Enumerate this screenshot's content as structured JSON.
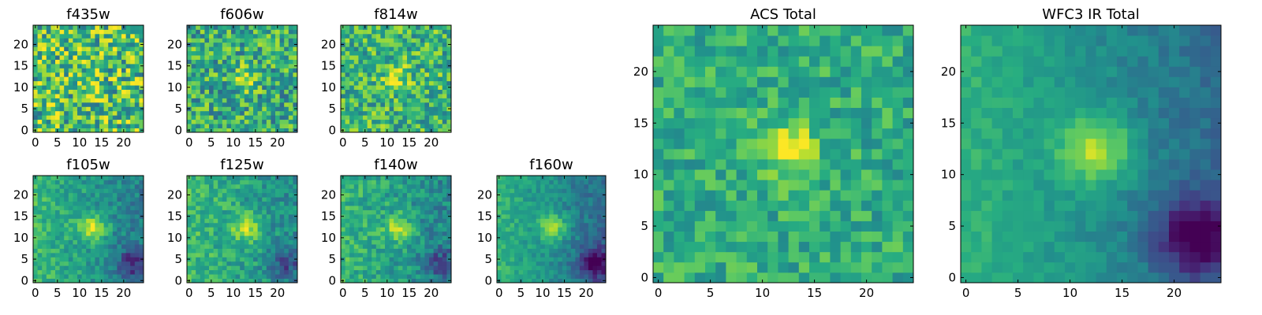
{
  "chart_data": [
    {
      "type": "heatmap",
      "title": "f435w",
      "grid": [
        25,
        25
      ],
      "xticks": [
        "0",
        "5",
        "10",
        "15",
        "20"
      ],
      "yticks": [
        "0",
        "5",
        "10",
        "15",
        "20"
      ],
      "colormap": "viridis",
      "blob": {
        "cx": 12.5,
        "cy": 12,
        "sigma": 1.4,
        "amp": 0.25
      },
      "gradient": 0,
      "noise": 0.42,
      "base": 0.7,
      "dark_corner": 0
    },
    {
      "type": "heatmap",
      "title": "f606w",
      "grid": [
        25,
        25
      ],
      "xticks": [
        "0",
        "5",
        "10",
        "15",
        "20"
      ],
      "yticks": [
        "0",
        "5",
        "10",
        "15",
        "20"
      ],
      "colormap": "viridis",
      "blob": {
        "cx": 12.5,
        "cy": 12,
        "sigma": 1.8,
        "amp": 0.35
      },
      "gradient": 0,
      "noise": 0.34,
      "base": 0.62,
      "dark_corner": 0
    },
    {
      "type": "heatmap",
      "title": "f814w",
      "grid": [
        25,
        25
      ],
      "xticks": [
        "0",
        "5",
        "10",
        "15",
        "20"
      ],
      "yticks": [
        "0",
        "5",
        "10",
        "15",
        "20"
      ],
      "colormap": "viridis",
      "blob": {
        "cx": 12,
        "cy": 12.5,
        "sigma": 1.8,
        "amp": 0.3
      },
      "gradient": 0,
      "noise": 0.32,
      "base": 0.66,
      "dark_corner": 0
    },
    {
      "type": "heatmap",
      "title": "f105w",
      "grid": [
        25,
        25
      ],
      "xticks": [
        "0",
        "5",
        "10",
        "15",
        "20"
      ],
      "yticks": [
        "0",
        "5",
        "10",
        "15",
        "20"
      ],
      "colormap": "viridis",
      "blob": {
        "cx": 13,
        "cy": 12.5,
        "sigma": 2.2,
        "amp": 0.35
      },
      "gradient": 0.25,
      "noise": 0.16,
      "base": 0.55,
      "dark_corner": 0.3
    },
    {
      "type": "heatmap",
      "title": "f125w",
      "grid": [
        25,
        25
      ],
      "xticks": [
        "0",
        "5",
        "10",
        "15",
        "20"
      ],
      "yticks": [
        "0",
        "5",
        "10",
        "15",
        "20"
      ],
      "colormap": "viridis",
      "blob": {
        "cx": 13,
        "cy": 12.5,
        "sigma": 2.2,
        "amp": 0.35
      },
      "gradient": 0.2,
      "noise": 0.18,
      "base": 0.58,
      "dark_corner": 0.25
    },
    {
      "type": "heatmap",
      "title": "f140w",
      "grid": [
        25,
        25
      ],
      "xticks": [
        "0",
        "5",
        "10",
        "15",
        "20"
      ],
      "yticks": [
        "0",
        "5",
        "10",
        "15",
        "20"
      ],
      "colormap": "viridis",
      "blob": {
        "cx": 12.5,
        "cy": 12,
        "sigma": 2.2,
        "amp": 0.32
      },
      "gradient": 0.2,
      "noise": 0.18,
      "base": 0.56,
      "dark_corner": 0.25
    },
    {
      "type": "heatmap",
      "title": "f160w",
      "grid": [
        25,
        25
      ],
      "xticks": [
        "0",
        "5",
        "10",
        "15",
        "20"
      ],
      "yticks": [
        "0",
        "5",
        "10",
        "15",
        "20"
      ],
      "colormap": "viridis",
      "blob": {
        "cx": 12.5,
        "cy": 12.5,
        "sigma": 2.2,
        "amp": 0.35
      },
      "gradient": 0.3,
      "noise": 0.12,
      "base": 0.5,
      "dark_corner": 0.4
    },
    {
      "type": "heatmap",
      "title": "ACS Total",
      "grid": [
        25,
        25
      ],
      "xticks": [
        "0",
        "5",
        "10",
        "15",
        "20"
      ],
      "yticks": [
        "0",
        "5",
        "10",
        "15",
        "20"
      ],
      "colormap": "viridis",
      "blob": {
        "cx": 12.5,
        "cy": 12.5,
        "sigma": 2,
        "amp": 0.35
      },
      "gradient": 0,
      "noise": 0.2,
      "base": 0.62,
      "dark_corner": 0
    },
    {
      "type": "heatmap",
      "title": "WFC3 IR Total",
      "grid": [
        25,
        25
      ],
      "xticks": [
        "0",
        "5",
        "10",
        "15",
        "20"
      ],
      "yticks": [
        "0",
        "5",
        "10",
        "15",
        "20"
      ],
      "colormap": "viridis",
      "blob": {
        "cx": 12.5,
        "cy": 12.5,
        "sigma": 2.4,
        "amp": 0.4
      },
      "gradient": 0.3,
      "noise": 0.08,
      "base": 0.5,
      "dark_corner": 0.45
    }
  ]
}
